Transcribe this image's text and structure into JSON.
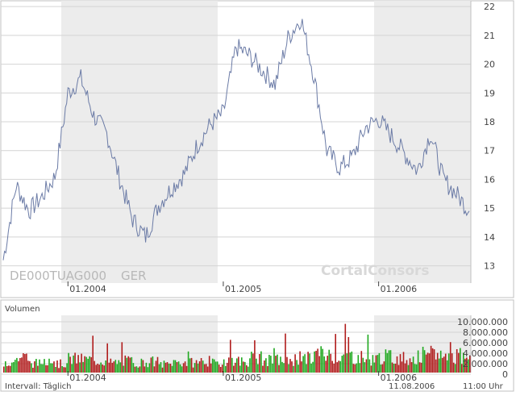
{
  "colors": {
    "line": "#6b7ba6",
    "band": "#ececec",
    "grid": "#d4d4d4",
    "frame": "#c0c0c0",
    "vol_up": "#1fa81f",
    "vol_down": "#b01c1c",
    "text": "#444444",
    "watermark": "#d8d8d8"
  },
  "price_panel": {
    "isin": "DE000TUAG000",
    "exchange": "GER",
    "watermark": "CortalConsors",
    "y_ticks": [
      "22",
      "21",
      "20",
      "19",
      "18",
      "17",
      "16",
      "15",
      "14",
      "13"
    ],
    "x_ticks": [
      "01.2004",
      "01.2005",
      "01.2006"
    ]
  },
  "volume_panel": {
    "title": "Volumen",
    "y_ticks": [
      "10.000.000",
      "8.000.000",
      "6.000.000",
      "4.000.000",
      "2.000.000",
      "0"
    ],
    "x_ticks": [
      "01.2004",
      "01.2005",
      "01.2006"
    ]
  },
  "footer": {
    "interval": "Intervall: Täglich",
    "date": "11.08.2006",
    "time": "11:00 Uhr"
  },
  "chart_data": [
    {
      "type": "line",
      "series": [
        {
          "x": [
            "2003-08",
            "2003-09",
            "2003-10",
            "2003-11",
            "2003-12",
            "2004-01",
            "2004-02",
            "2004-03",
            "2004-04",
            "2004-05",
            "2004-06",
            "2004-07",
            "2004-08",
            "2004-09",
            "2004-10",
            "2004-11",
            "2004-12",
            "2005-01",
            "2005-02",
            "2005-03",
            "2005-04",
            "2005-05",
            "2005-06",
            "2005-07",
            "2005-08",
            "2005-09",
            "2005-10",
            "2005-11",
            "2005-12",
            "2006-01",
            "2006-02",
            "2006-03",
            "2006-04",
            "2006-05",
            "2006-06",
            "2006-07",
            "2006-08"
          ],
          "values": [
            13.2,
            15.8,
            14.9,
            15.4,
            16.1,
            19.0,
            19.5,
            18.2,
            17.6,
            16.0,
            14.6,
            14.0,
            15.1,
            15.7,
            16.2,
            17.2,
            17.9,
            18.3,
            20.6,
            20.3,
            19.8,
            19.3,
            20.9,
            21.6,
            19.6,
            17.0,
            16.4,
            16.8,
            17.8,
            18.1,
            17.5,
            16.9,
            16.3,
            17.6,
            16.0,
            15.5,
            14.9
          ]
        }
      ],
      "ylim": [
        12.4,
        22.2
      ]
    },
    {
      "type": "bar",
      "series": [
        {
          "x": [
            "2003-08",
            "2003-09",
            "2003-10",
            "2003-11",
            "2003-12",
            "2004-01",
            "2004-02",
            "2004-03",
            "2004-04",
            "2004-05",
            "2004-06",
            "2004-07",
            "2004-08",
            "2004-09",
            "2004-10",
            "2004-11",
            "2004-12",
            "2005-01",
            "2005-02",
            "2005-03",
            "2005-04",
            "2005-05",
            "2005-06",
            "2005-07",
            "2005-08",
            "2005-09",
            "2005-10",
            "2005-11",
            "2005-12",
            "2006-01",
            "2006-02",
            "2006-03",
            "2006-04",
            "2006-05",
            "2006-06",
            "2006-07",
            "2006-08"
          ],
          "values": [
            2100000,
            2900000,
            1800000,
            2400000,
            1700000,
            2600000,
            2500000,
            2300000,
            1900000,
            2200000,
            1900000,
            2100000,
            1600000,
            2000000,
            1900000,
            2200000,
            1800000,
            2500000,
            2200000,
            2800000,
            2300000,
            2400000,
            2500000,
            2700000,
            3600000,
            3300000,
            3200000,
            2900000,
            2600000,
            3000000,
            2800000,
            2700000,
            2900000,
            3500000,
            3100000,
            3300000,
            3600000
          ]
        }
      ],
      "ylim": [
        0,
        11000000
      ]
    }
  ]
}
